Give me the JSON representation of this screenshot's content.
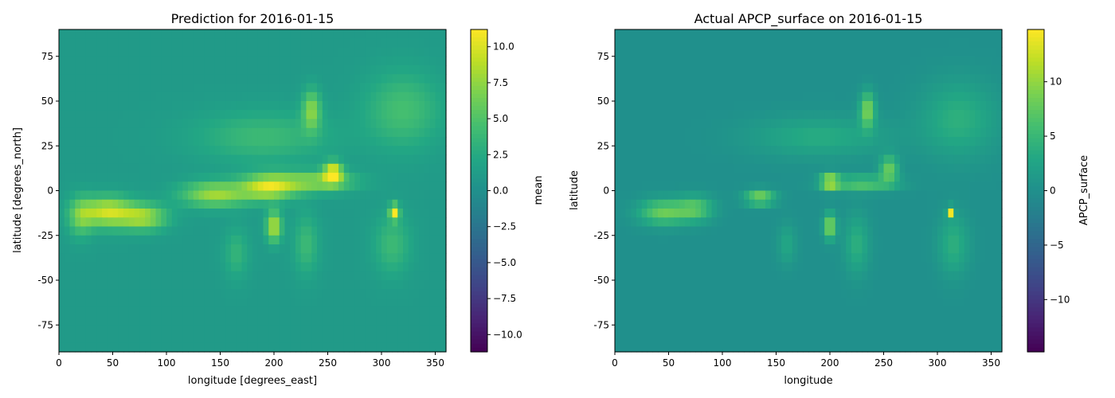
{
  "chart_data": [
    {
      "type": "heatmap",
      "title": "Prediction for 2016-01-15",
      "xlabel": "longitude [degrees_east]",
      "ylabel": "latitude [degrees_north]",
      "xlim": [
        0,
        360
      ],
      "ylim": [
        -90,
        90
      ],
      "xticks": [
        0,
        50,
        100,
        150,
        200,
        250,
        300,
        350
      ],
      "yticks": [
        -75,
        -50,
        -25,
        0,
        25,
        50,
        75
      ],
      "colorbar": {
        "label": "mean",
        "range": [
          -11.2,
          11.2
        ],
        "ticks": [
          -10.0,
          -7.5,
          -5.0,
          -2.5,
          0.0,
          2.5,
          5.0,
          7.5,
          10.0
        ],
        "tick_labels": [
          "−10.0",
          "−7.5",
          "−5.0",
          "−2.5",
          "0.0",
          "2.5",
          "5.0",
          "7.5",
          "10.0"
        ],
        "colormap": "viridis"
      },
      "background_value": 1.0,
      "features": [
        {
          "lon": 45,
          "lat": -12,
          "value": 9.5,
          "lon_spread": 18,
          "lat_spread": 6
        },
        {
          "lon": 80,
          "lat": -15,
          "value": 7.5,
          "lon_spread": 15,
          "lat_spread": 5
        },
        {
          "lon": 145,
          "lat": -2,
          "value": 8.0,
          "lon_spread": 22,
          "lat_spread": 5
        },
        {
          "lon": 195,
          "lat": 2,
          "value": 9.5,
          "lon_spread": 18,
          "lat_spread": 5
        },
        {
          "lon": 240,
          "lat": 5,
          "value": 7.0,
          "lon_spread": 25,
          "lat_spread": 4
        },
        {
          "lon": 255,
          "lat": 10,
          "value": 10.5,
          "lon_spread": 6,
          "lat_spread": 4
        },
        {
          "lon": 200,
          "lat": -20,
          "value": 9.0,
          "lon_spread": 5,
          "lat_spread": 6
        },
        {
          "lon": 312,
          "lat": -12,
          "value": 11.0,
          "lon_spread": 3,
          "lat_spread": 3
        },
        {
          "lon": 235,
          "lat": 45,
          "value": 7.0,
          "lon_spread": 6,
          "lat_spread": 8
        },
        {
          "lon": 190,
          "lat": 30,
          "value": 4.0,
          "lon_spread": 45,
          "lat_spread": 10
        },
        {
          "lon": 320,
          "lat": 45,
          "value": 4.5,
          "lon_spread": 25,
          "lat_spread": 15
        },
        {
          "lon": 310,
          "lat": -30,
          "value": 4.0,
          "lon_spread": 12,
          "lat_spread": 12
        },
        {
          "lon": 165,
          "lat": -35,
          "value": 3.5,
          "lon_spread": 8,
          "lat_spread": 10
        },
        {
          "lon": 230,
          "lat": -30,
          "value": 4.0,
          "lon_spread": 8,
          "lat_spread": 12
        },
        {
          "lon": 20,
          "lat": -15,
          "value": 5.0,
          "lon_spread": 8,
          "lat_spread": 8
        }
      ]
    },
    {
      "type": "heatmap",
      "title": "Actual APCP_surface on 2016-01-15",
      "xlabel": "longitude",
      "ylabel": "latitude",
      "xlim": [
        0,
        360
      ],
      "ylim": [
        -90,
        90
      ],
      "xticks": [
        0,
        50,
        100,
        150,
        200,
        250,
        300,
        350
      ],
      "yticks": [
        -75,
        -50,
        -25,
        0,
        25,
        50,
        75
      ],
      "colorbar": {
        "label": "APCP_surface",
        "range": [
          -14.8,
          14.8
        ],
        "ticks": [
          -10,
          -5,
          0,
          5,
          10
        ],
        "tick_labels": [
          "−10",
          "−5",
          "0",
          "5",
          "10"
        ],
        "colormap": "viridis"
      },
      "background_value": 0.0,
      "features": [
        {
          "lon": 45,
          "lat": -12,
          "value": 8.0,
          "lon_spread": 16,
          "lat_spread": 5
        },
        {
          "lon": 75,
          "lat": -10,
          "value": 6.5,
          "lon_spread": 12,
          "lat_spread": 5
        },
        {
          "lon": 135,
          "lat": -4,
          "value": 9.0,
          "lon_spread": 10,
          "lat_spread": 3
        },
        {
          "lon": 200,
          "lat": 5,
          "value": 11.0,
          "lon_spread": 6,
          "lat_spread": 3
        },
        {
          "lon": 230,
          "lat": 4,
          "value": 7.0,
          "lon_spread": 22,
          "lat_spread": 3
        },
        {
          "lon": 255,
          "lat": 12,
          "value": 8.0,
          "lon_spread": 6,
          "lat_spread": 5
        },
        {
          "lon": 200,
          "lat": -20,
          "value": 10.0,
          "lon_spread": 4,
          "lat_spread": 5
        },
        {
          "lon": 312,
          "lat": -12,
          "value": 14.0,
          "lon_spread": 2,
          "lat_spread": 2
        },
        {
          "lon": 235,
          "lat": 45,
          "value": 9.0,
          "lon_spread": 5,
          "lat_spread": 7
        },
        {
          "lon": 190,
          "lat": 30,
          "value": 3.5,
          "lon_spread": 45,
          "lat_spread": 8
        },
        {
          "lon": 320,
          "lat": 40,
          "value": 4.0,
          "lon_spread": 25,
          "lat_spread": 15
        },
        {
          "lon": 315,
          "lat": -30,
          "value": 4.0,
          "lon_spread": 10,
          "lat_spread": 12
        },
        {
          "lon": 225,
          "lat": -30,
          "value": 4.0,
          "lon_spread": 8,
          "lat_spread": 12
        },
        {
          "lon": 160,
          "lat": -30,
          "value": 3.0,
          "lon_spread": 6,
          "lat_spread": 8
        }
      ]
    }
  ]
}
